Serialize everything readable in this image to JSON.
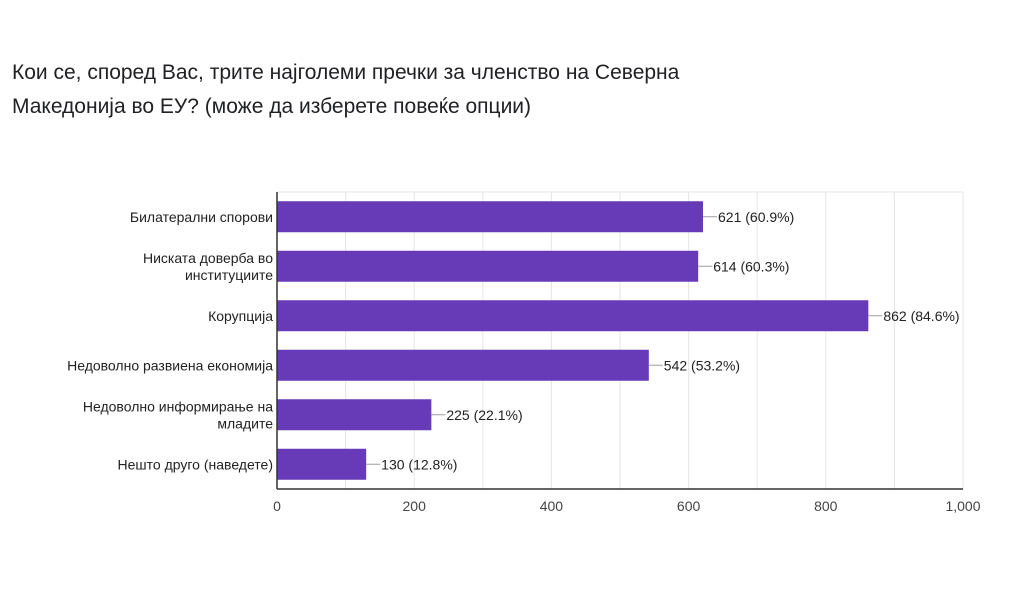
{
  "title_lines": [
    "Кои се, според Вас, трите најголеми пречки за членство на Северна",
    "Македонија во ЕУ?  (може да изберете повеќе опции)"
  ],
  "chart_data": {
    "type": "bar",
    "orientation": "horizontal",
    "categories": [
      [
        "Билатерални спорови"
      ],
      [
        "Ниската доверба во",
        "институциите"
      ],
      [
        "Корупција"
      ],
      [
        "Недоволно развиена економија"
      ],
      [
        "Недоволно информирање на",
        "младите"
      ],
      [
        "Нешто друго (наведете)"
      ]
    ],
    "values": [
      621,
      614,
      862,
      542,
      225,
      130
    ],
    "data_labels": [
      "621 (60.9%)",
      "614 (60.3%)",
      "862 (84.6%)",
      "542 (53.2%)",
      "225 (22.1%)",
      "130 (12.8%)"
    ],
    "xlim": [
      0,
      1000
    ],
    "x_ticks": [
      0,
      200,
      400,
      600,
      800,
      1000
    ],
    "x_tick_labels": [
      "0",
      "200",
      "400",
      "600",
      "800",
      "1,000"
    ],
    "grid": true,
    "bar_color": "#673ab7",
    "grid_color": "#e6e6e6",
    "axis_color": "#333333"
  }
}
